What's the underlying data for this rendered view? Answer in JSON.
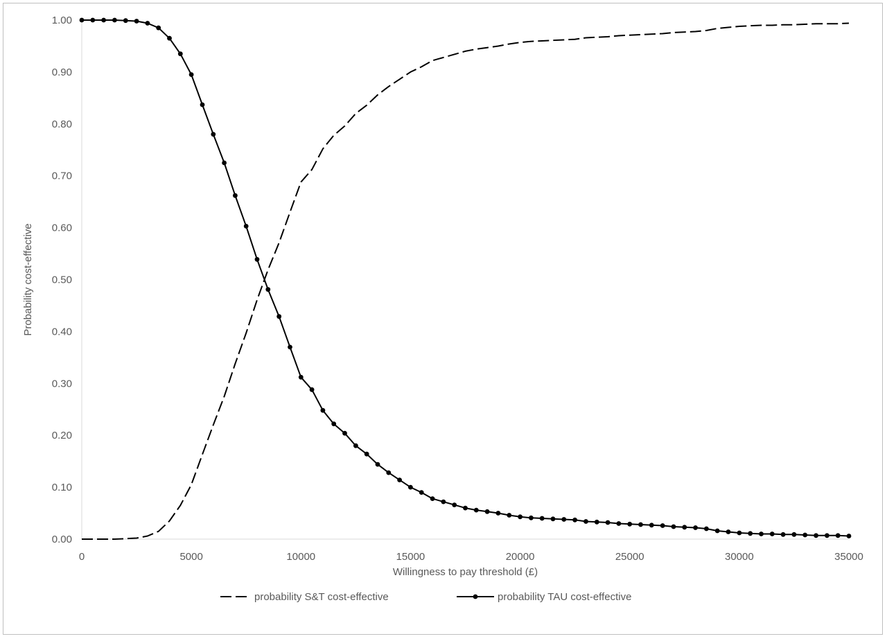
{
  "chart_data": {
    "type": "line",
    "title": "",
    "xlabel": "Willingness to pay threshold (£)",
    "ylabel": "Probability cost-effective",
    "xlim": [
      0,
      35000
    ],
    "ylim": [
      0,
      1
    ],
    "x_ticks": [
      "0",
      "5000",
      "10000",
      "15000",
      "20000",
      "25000",
      "30000",
      "35000"
    ],
    "y_ticks": [
      "0.00",
      "0.10",
      "0.20",
      "0.30",
      "0.40",
      "0.50",
      "0.60",
      "0.70",
      "0.80",
      "0.90",
      "1.00"
    ],
    "grid": false,
    "legend_position": "bottom",
    "x": [
      0,
      500,
      1000,
      1500,
      2000,
      2500,
      3000,
      3500,
      4000,
      4500,
      5000,
      5500,
      6000,
      6500,
      7000,
      7500,
      8000,
      8500,
      9000,
      9500,
      10000,
      10500,
      11000,
      11500,
      12000,
      12500,
      13000,
      13500,
      14000,
      14500,
      15000,
      15500,
      16000,
      16500,
      17000,
      17500,
      18000,
      18500,
      19000,
      19500,
      20000,
      20500,
      21000,
      21500,
      22000,
      22500,
      23000,
      23500,
      24000,
      24500,
      25000,
      25500,
      26000,
      26500,
      27000,
      27500,
      28000,
      28500,
      29000,
      29500,
      30000,
      30500,
      31000,
      31500,
      32000,
      32500,
      33000,
      33500,
      34000,
      34500,
      35000
    ],
    "series": [
      {
        "name": "probability S&T cost-effective",
        "style": "dashed",
        "color": "#000000",
        "values": [
          0.0,
          0.0,
          0.0,
          0.0,
          0.001,
          0.002,
          0.006,
          0.015,
          0.035,
          0.065,
          0.105,
          0.163,
          0.22,
          0.275,
          0.338,
          0.397,
          0.461,
          0.519,
          0.571,
          0.63,
          0.688,
          0.712,
          0.752,
          0.778,
          0.796,
          0.82,
          0.836,
          0.856,
          0.872,
          0.886,
          0.9,
          0.91,
          0.922,
          0.928,
          0.934,
          0.94,
          0.944,
          0.947,
          0.95,
          0.954,
          0.957,
          0.959,
          0.96,
          0.961,
          0.962,
          0.963,
          0.966,
          0.967,
          0.968,
          0.97,
          0.971,
          0.972,
          0.973,
          0.974,
          0.976,
          0.977,
          0.978,
          0.98,
          0.984,
          0.986,
          0.988,
          0.989,
          0.99,
          0.99,
          0.991,
          0.991,
          0.992,
          0.993,
          0.993,
          0.993,
          0.994
        ]
      },
      {
        "name": "probability TAU cost-effective",
        "style": "solid-markers",
        "color": "#000000",
        "values": [
          1.0,
          1.0,
          1.0,
          1.0,
          0.999,
          0.998,
          0.994,
          0.985,
          0.965,
          0.935,
          0.895,
          0.837,
          0.78,
          0.725,
          0.662,
          0.603,
          0.539,
          0.481,
          0.429,
          0.37,
          0.312,
          0.288,
          0.248,
          0.222,
          0.204,
          0.18,
          0.164,
          0.144,
          0.128,
          0.114,
          0.1,
          0.09,
          0.078,
          0.072,
          0.066,
          0.06,
          0.056,
          0.053,
          0.05,
          0.046,
          0.043,
          0.041,
          0.04,
          0.039,
          0.038,
          0.037,
          0.034,
          0.033,
          0.032,
          0.03,
          0.029,
          0.028,
          0.027,
          0.026,
          0.024,
          0.023,
          0.022,
          0.02,
          0.016,
          0.014,
          0.012,
          0.011,
          0.01,
          0.01,
          0.009,
          0.009,
          0.008,
          0.007,
          0.007,
          0.007,
          0.006
        ]
      }
    ]
  }
}
